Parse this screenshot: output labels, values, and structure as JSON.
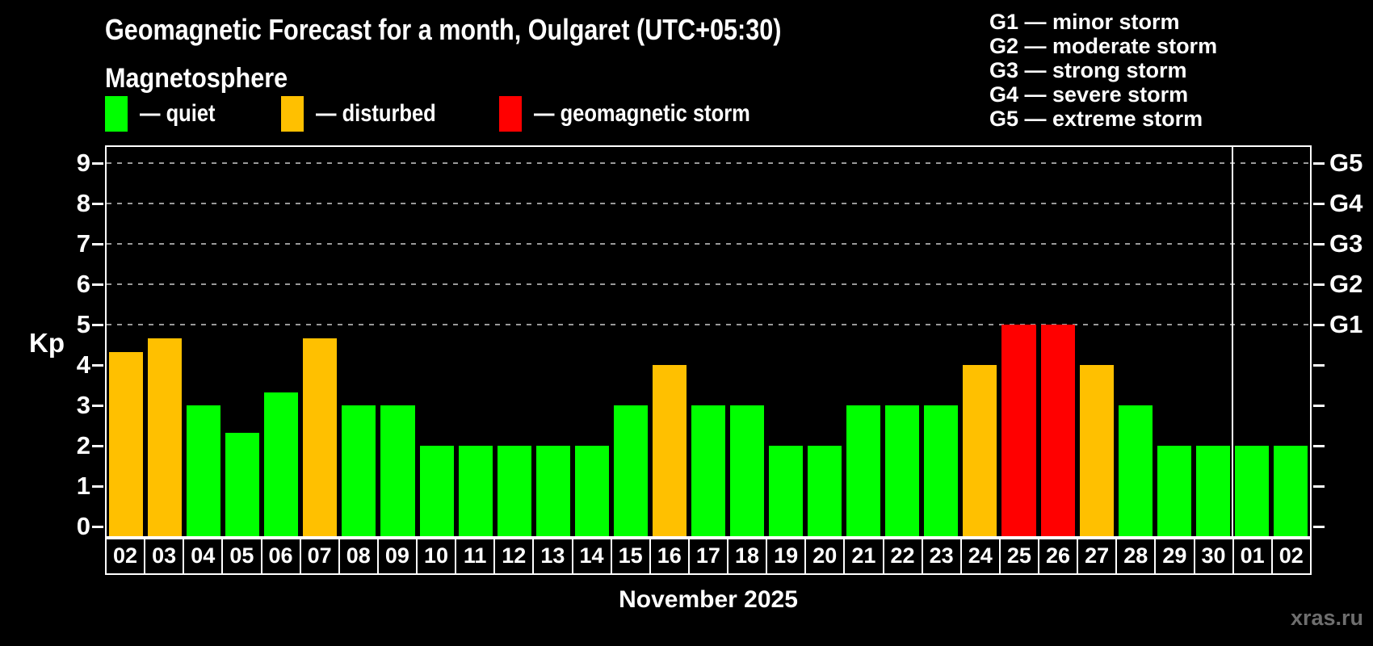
{
  "title": "Geomagnetic Forecast for a month, Oulgaret (UTC+05:30)",
  "subtitle": "Magnetosphere",
  "legend": {
    "items": [
      {
        "key": "quiet",
        "label": "— quiet",
        "color": "#00ff00"
      },
      {
        "key": "disturbed",
        "label": "— disturbed",
        "color": "#ffc000"
      },
      {
        "key": "storm",
        "label": "— geomagnetic storm",
        "color": "#ff0000"
      }
    ]
  },
  "g_legend": [
    "G1 — minor storm",
    "G2 — moderate storm",
    "G3 — strong storm",
    "G4 — severe storm",
    "G5 — extreme storm"
  ],
  "watermark": "xras.ru",
  "chart_data": {
    "type": "bar",
    "title": "Geomagnetic Forecast for a month, Oulgaret (UTC+05:30)",
    "ylabel": "Kp",
    "xlabel": "November 2025",
    "ylim": [
      0,
      9.5
    ],
    "y_ticks": [
      0,
      1,
      2,
      3,
      4,
      5,
      6,
      7,
      8,
      9
    ],
    "gridlines_at": [
      5,
      6,
      7,
      8,
      9
    ],
    "grid": "dashed horizontal at G-storm levels",
    "right_axis_labels": [
      {
        "kp": 5,
        "label": "G1"
      },
      {
        "kp": 6,
        "label": "G2"
      },
      {
        "kp": 7,
        "label": "G3"
      },
      {
        "kp": 8,
        "label": "G4"
      },
      {
        "kp": 9,
        "label": "G5"
      }
    ],
    "categories": [
      "02",
      "03",
      "04",
      "05",
      "06",
      "07",
      "08",
      "09",
      "10",
      "11",
      "12",
      "13",
      "14",
      "15",
      "16",
      "17",
      "18",
      "19",
      "20",
      "21",
      "22",
      "23",
      "24",
      "25",
      "26",
      "27",
      "28",
      "29",
      "30",
      "01",
      "02"
    ],
    "values": [
      4.33,
      4.67,
      3,
      2.33,
      3.33,
      4.67,
      3,
      3,
      2,
      2,
      2,
      2,
      2,
      3,
      4,
      3,
      3,
      2,
      2,
      3,
      3,
      3,
      4,
      5,
      5,
      4,
      3,
      2,
      2,
      2,
      2
    ],
    "statuses": [
      "disturbed",
      "disturbed",
      "quiet",
      "quiet",
      "quiet",
      "disturbed",
      "quiet",
      "quiet",
      "quiet",
      "quiet",
      "quiet",
      "quiet",
      "quiet",
      "quiet",
      "disturbed",
      "quiet",
      "quiet",
      "quiet",
      "quiet",
      "quiet",
      "quiet",
      "quiet",
      "disturbed",
      "storm",
      "storm",
      "disturbed",
      "quiet",
      "quiet",
      "quiet",
      "quiet",
      "quiet"
    ],
    "status_colors": {
      "quiet": "#00ff00",
      "disturbed": "#ffc000",
      "storm": "#ff0000"
    },
    "month_separator_after_index": 28
  }
}
